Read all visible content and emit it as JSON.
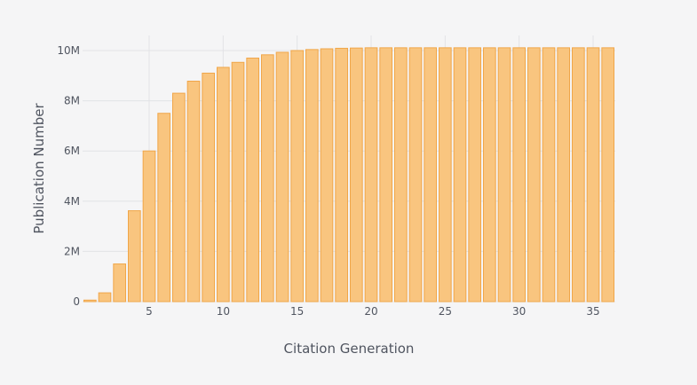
{
  "chart_data": {
    "type": "bar",
    "title": "",
    "xlabel": "Citation Generation",
    "ylabel": "Publication Number",
    "x": [
      1,
      2,
      3,
      4,
      5,
      6,
      7,
      8,
      9,
      10,
      11,
      12,
      13,
      14,
      15,
      16,
      17,
      18,
      19,
      20,
      21,
      22,
      23,
      24,
      25,
      26,
      27,
      28,
      29,
      30,
      31,
      32,
      33,
      34,
      35,
      36
    ],
    "values": [
      60000,
      350000,
      1500000,
      3620000,
      6000000,
      7500000,
      8300000,
      8780000,
      9100000,
      9330000,
      9530000,
      9700000,
      9830000,
      9930000,
      10000000,
      10040000,
      10070000,
      10090000,
      10100000,
      10110000,
      10110000,
      10110000,
      10110000,
      10110000,
      10110000,
      10110000,
      10110000,
      10110000,
      10110000,
      10110000,
      10110000,
      10110000,
      10110000,
      10110000,
      10110000,
      10110000
    ],
    "xticks": [
      5,
      10,
      15,
      20,
      25,
      30,
      35
    ],
    "xtick_labels": [
      "5",
      "10",
      "15",
      "20",
      "25",
      "30",
      "35"
    ],
    "yticks": [
      0,
      2000000,
      4000000,
      6000000,
      8000000,
      10000000
    ],
    "ytick_labels": [
      "0",
      "2M",
      "4M",
      "6M",
      "8M",
      "10M"
    ],
    "ylim": [
      0,
      10600000
    ],
    "xlim": [
      0.5,
      36.5
    ],
    "grid": true,
    "legend": "none",
    "bar_fill": "#f9c57f",
    "bar_stroke": "#f0a649"
  }
}
